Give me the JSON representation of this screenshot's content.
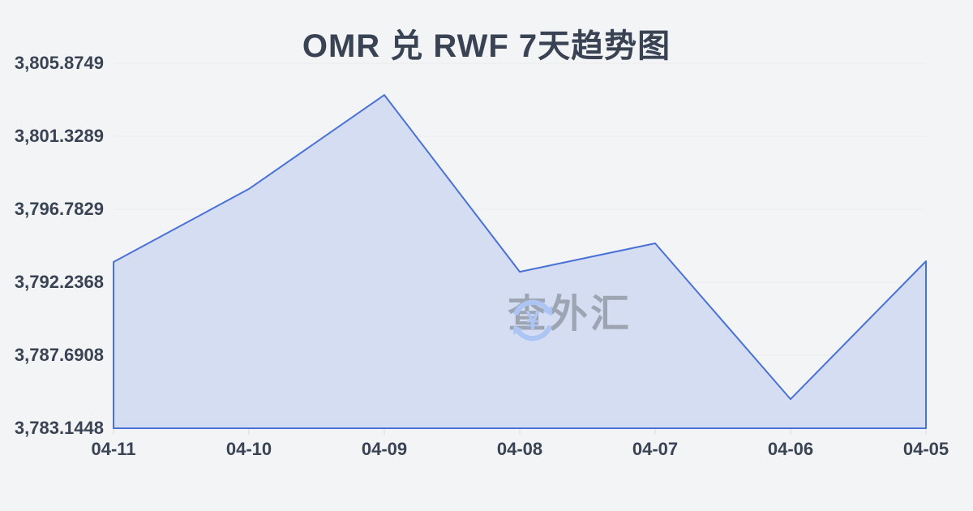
{
  "page": {
    "background": "#f3f4f6"
  },
  "title": "OMR 兑 RWF 7天趋势图",
  "watermark": {
    "icon": "currency-exchange-icon",
    "icon_symbol": "¥",
    "icon_color": "#a9c3f3",
    "text": "查外汇",
    "text_color": "#9aa1ad"
  },
  "chart_data": {
    "type": "area",
    "title": "OMR 兑 RWF 7天趋势图",
    "categories": [
      "04-11",
      "04-10",
      "04-09",
      "04-08",
      "04-07",
      "04-06",
      "04-05"
    ],
    "values": [
      3793.5,
      3798.05,
      3803.9,
      3792.89,
      3794.66,
      3784.96,
      3793.55
    ],
    "series_name": "OMR/RWF",
    "y_tick_labels": [
      "3,805.8749",
      "3,801.3289",
      "3,796.7829",
      "3,792.2368",
      "3,787.6908",
      "3,783.1448"
    ],
    "ylim": [
      3783.1448,
      3805.8749
    ],
    "xlabel": "",
    "ylabel": "",
    "grid": true,
    "legend_position": "none",
    "line_color": "#4a72d6",
    "fill_color": "#d5ddf3",
    "grid_color": "#e9ebee",
    "tick_color": "#d9dbde",
    "axis_label_color": "#3a4353",
    "title_color": "#3a4353"
  }
}
